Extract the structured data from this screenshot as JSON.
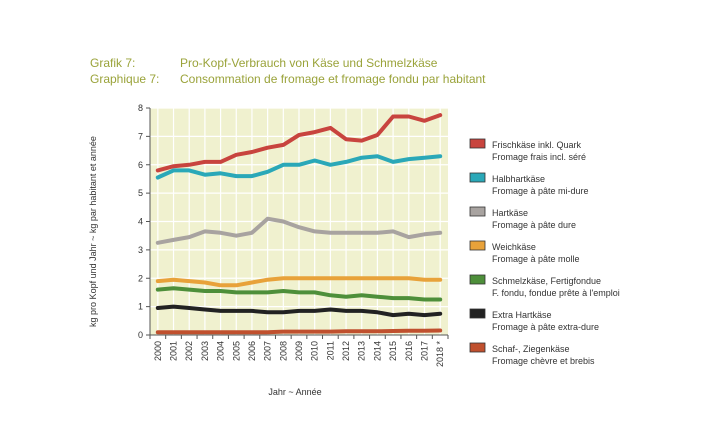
{
  "header": {
    "line1_label": "Grafik 7:",
    "line1_text": "Pro-Kopf-Verbrauch von Käse und Schmelzkäse",
    "line2_label": "Graphique 7:",
    "line2_text": "Consommation de fromage et fromage fondu par habitant"
  },
  "colors": {
    "header": "#9aa33a",
    "plot_bg": "#f0f1cf",
    "grid": "#ffffff"
  },
  "chart_data": {
    "type": "line",
    "title": "Pro-Kopf-Verbrauch von Käse und Schmelzkäse / Consommation de fromage et fromage fondu par habitant",
    "xlabel": "Jahr  ~  Année",
    "ylabel": "kg pro Kopf und Jahr  ~  kg par habitant et année",
    "ylim": [
      0,
      8
    ],
    "yticks": [
      0,
      1,
      2,
      3,
      4,
      5,
      6,
      7,
      8
    ],
    "grid": true,
    "legend_position": "right",
    "x": [
      "2000",
      "2001",
      "2002",
      "2003",
      "2004",
      "2005",
      "2006",
      "2007",
      "2008",
      "2009",
      "2010",
      "2011",
      "2012",
      "2013",
      "2014",
      "2015",
      "2016",
      "2017",
      "2018 *"
    ],
    "series": [
      {
        "name": "Frischkäse inkl. Quark",
        "name2": "Fromage frais incl. séré",
        "color": "#c8443e",
        "values": [
          5.8,
          5.95,
          6.0,
          6.1,
          6.1,
          6.35,
          6.45,
          6.6,
          6.7,
          7.05,
          7.15,
          7.3,
          6.9,
          6.85,
          7.05,
          7.7,
          7.7,
          7.55,
          7.75
        ]
      },
      {
        "name": "Halbhartkäse",
        "name2": "Fromage à pâte mi-dure",
        "color": "#2aa8b8",
        "values": [
          5.55,
          5.8,
          5.8,
          5.65,
          5.7,
          5.6,
          5.6,
          5.75,
          6.0,
          6.0,
          6.15,
          6.0,
          6.1,
          6.25,
          6.3,
          6.1,
          6.2,
          6.25,
          6.3
        ]
      },
      {
        "name": "Hartkäse",
        "name2": "Fromage à pâte dure",
        "color": "#a8a3a0",
        "values": [
          3.25,
          3.35,
          3.45,
          3.65,
          3.6,
          3.5,
          3.6,
          4.1,
          4.0,
          3.8,
          3.65,
          3.6,
          3.6,
          3.6,
          3.6,
          3.65,
          3.45,
          3.55,
          3.6
        ]
      },
      {
        "name": "Weichkäse",
        "name2": "Fromage à pâte molle",
        "color": "#e8a23a",
        "values": [
          1.9,
          1.95,
          1.9,
          1.85,
          1.75,
          1.75,
          1.85,
          1.95,
          2.0,
          2.0,
          2.0,
          2.0,
          2.0,
          2.0,
          2.0,
          2.0,
          2.0,
          1.95,
          1.95
        ]
      },
      {
        "name": "Schmelzkäse, Fertigfondue",
        "name2": "F. fondu, fondue prête à l'emploi",
        "color": "#4e8f3a",
        "values": [
          1.6,
          1.65,
          1.6,
          1.55,
          1.55,
          1.5,
          1.5,
          1.5,
          1.55,
          1.5,
          1.5,
          1.4,
          1.35,
          1.4,
          1.35,
          1.3,
          1.3,
          1.25,
          1.25
        ]
      },
      {
        "name": "Extra Hartkäse",
        "name2": "Fromage à pâte extra-dure",
        "color": "#222222",
        "values": [
          0.95,
          1.0,
          0.95,
          0.9,
          0.85,
          0.85,
          0.85,
          0.8,
          0.8,
          0.85,
          0.85,
          0.9,
          0.85,
          0.85,
          0.8,
          0.7,
          0.75,
          0.7,
          0.75
        ]
      },
      {
        "name": "Schaf-, Ziegenkäse",
        "name2": "Fromage chèvre et brebis",
        "color": "#c0502e",
        "values": [
          0.1,
          0.1,
          0.1,
          0.1,
          0.1,
          0.1,
          0.1,
          0.1,
          0.12,
          0.12,
          0.12,
          0.12,
          0.13,
          0.13,
          0.13,
          0.14,
          0.15,
          0.15,
          0.16
        ]
      }
    ]
  }
}
